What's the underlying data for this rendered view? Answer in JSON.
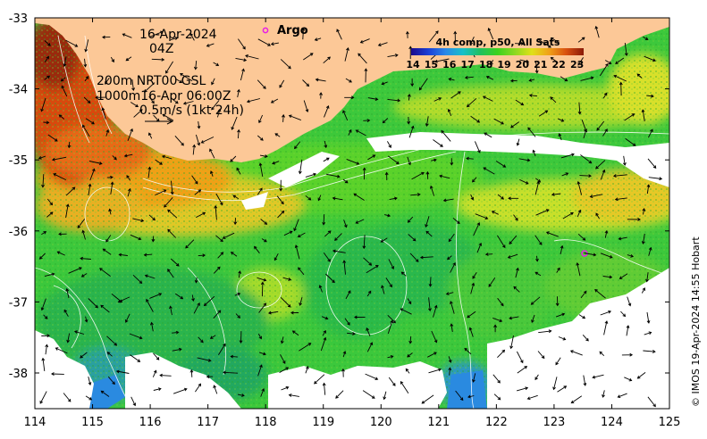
{
  "map": {
    "lon_ticks": [
      "114",
      "115",
      "116",
      "117",
      "118",
      "119",
      "120",
      "121",
      "122",
      "123",
      "124",
      "125"
    ],
    "lat_ticks": [
      "-33",
      "-34",
      "-35",
      "-36",
      "-37",
      "-38"
    ],
    "info_lines": [
      "16-Apr-2024",
      "04Z",
      "200m  NRT00 GSL",
      "1000m16-Apr 06:00Z",
      "0.5m/s (1kt 24h)"
    ],
    "argo_label": "Argo",
    "argo_color": "#e81ce8",
    "land_color": "#fcc897"
  },
  "colorbar": {
    "title": "4h comp, p50, All Sats",
    "ticks": [
      "14",
      "15",
      "16",
      "17",
      "18",
      "19",
      "20",
      "21",
      "22",
      "23"
    ],
    "colors": [
      "#1a0a8c",
      "#1a3fd6",
      "#2a88e8",
      "#18c0c8",
      "#20c060",
      "#3cd21e",
      "#8cd820",
      "#e0e018",
      "#f0a018",
      "#d85010",
      "#8a1a08"
    ]
  },
  "credit": "© IMOS 19-Apr-2024 14:55 Hobart"
}
